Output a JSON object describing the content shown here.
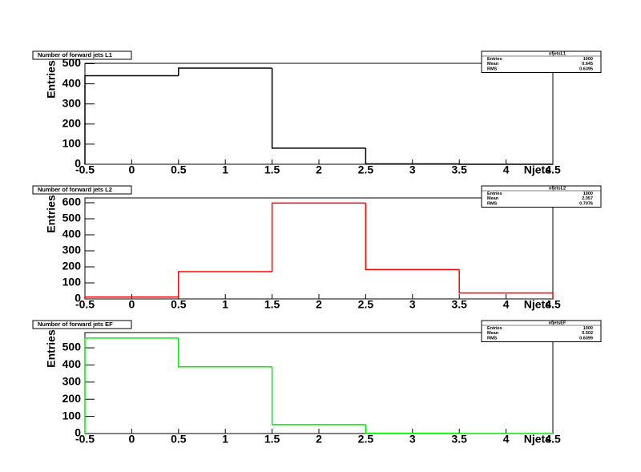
{
  "chart_data": [
    {
      "type": "histogram",
      "title": "Number of forward jets L1",
      "x_label": "Njets",
      "y_label": "Entries",
      "color": "#000000",
      "bins": [
        -0.5,
        0.5,
        1.5,
        2.5,
        3.5,
        4.5
      ],
      "values": [
        440,
        478,
        80,
        2,
        0
      ],
      "xlim": [
        -0.5,
        4.5
      ],
      "xticks": [
        -0.5,
        0,
        0.5,
        1,
        1.5,
        2,
        2.5,
        3,
        3.5,
        4,
        4.5
      ],
      "ylim": [
        0,
        502
      ],
      "yticks": [
        0,
        100,
        200,
        300,
        400,
        500
      ],
      "stats": {
        "name": "nfjetsL1",
        "rows": [
          {
            "label": "Entries",
            "value": 1000
          },
          {
            "label": "Mean",
            "value": 0.645
          },
          {
            "label": "RMS",
            "value": 0.6395
          }
        ]
      }
    },
    {
      "type": "histogram",
      "title": "Number of forward jets L2",
      "x_label": "Njets",
      "y_label": "Entries",
      "color": "#ff0000",
      "bins": [
        -0.5,
        0.5,
        1.5,
        2.5,
        3.5,
        4.5
      ],
      "values": [
        12,
        170,
        598,
        183,
        37
      ],
      "xlim": [
        -0.5,
        4.5
      ],
      "xticks": [
        -0.5,
        0,
        0.5,
        1,
        1.5,
        2,
        2.5,
        3,
        3.5,
        4,
        4.5
      ],
      "ylim": [
        0,
        630
      ],
      "yticks": [
        0,
        100,
        200,
        300,
        400,
        500,
        600
      ],
      "stats": {
        "name": "nfjetsL2",
        "rows": [
          {
            "label": "Entries",
            "value": 1000
          },
          {
            "label": "Mean",
            "value": 2.057
          },
          {
            "label": "RMS",
            "value": 0.7076
          }
        ]
      }
    },
    {
      "type": "histogram",
      "title": "Number of forward jets EF",
      "x_label": "Njets",
      "y_label": "Entries",
      "color": "#00ee00",
      "bins": [
        -0.5,
        0.5,
        1.5,
        2.5,
        3.5,
        4.5
      ],
      "values": [
        557,
        389,
        52,
        2,
        0
      ],
      "xlim": [
        -0.5,
        4.5
      ],
      "xticks": [
        -0.5,
        0,
        0.5,
        1,
        1.5,
        2,
        2.5,
        3,
        3.5,
        4,
        4.5
      ],
      "ylim": [
        0,
        589
      ],
      "yticks": [
        0,
        100,
        200,
        300,
        400,
        500
      ],
      "stats": {
        "name": "nfjetsEF",
        "rows": [
          {
            "label": "Entries",
            "value": 1000
          },
          {
            "label": "Mean",
            "value": 0.502
          },
          {
            "label": "RMS",
            "value": 0.6099
          }
        ]
      }
    }
  ]
}
